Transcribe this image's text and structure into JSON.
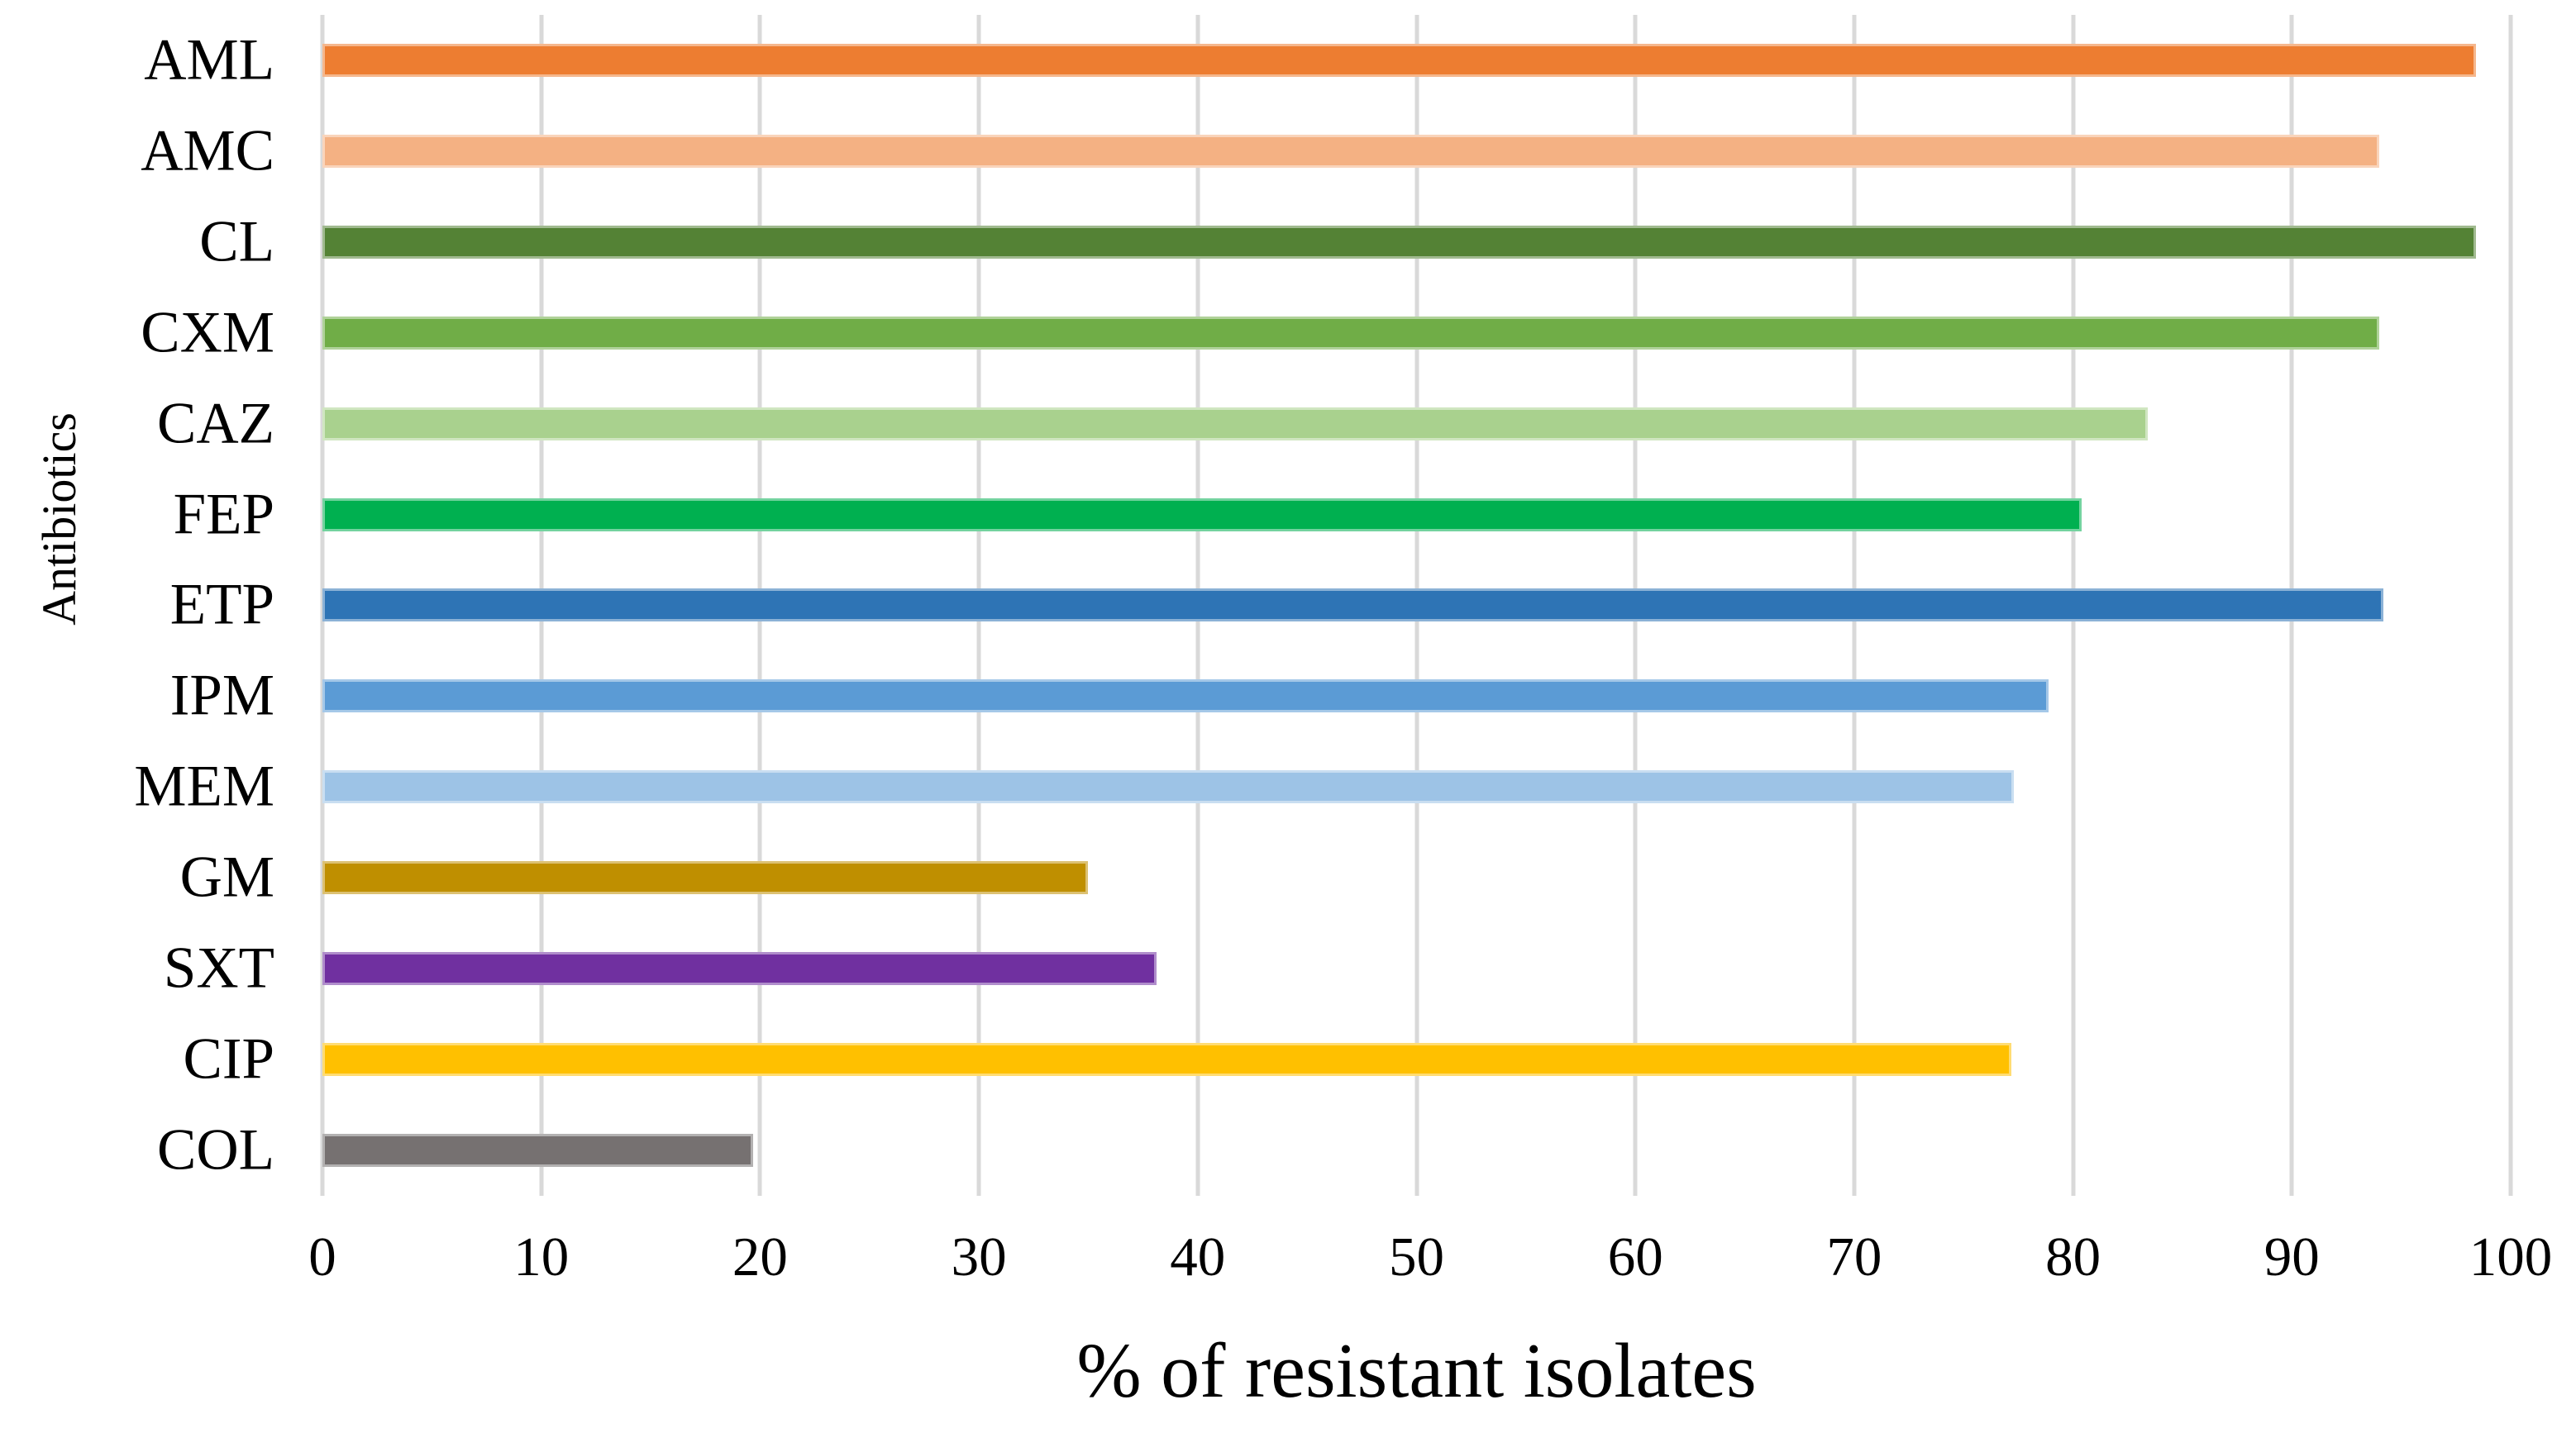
{
  "chart_data": {
    "type": "bar",
    "orientation": "horizontal",
    "title": "",
    "xlabel": "% of resistant isolates",
    "ylabel": "Antibiotics",
    "xlim": [
      0,
      100
    ],
    "x_ticks": [
      0,
      10,
      20,
      30,
      40,
      50,
      60,
      70,
      80,
      90,
      100
    ],
    "grid": "vertical-gridlines-on",
    "gridline_color": "#d9d9d9",
    "background_color": "#ffffff",
    "text_color": "#000000",
    "legend": "none",
    "categories": [
      "AML",
      "AMC",
      "CL",
      "CXM",
      "CAZ",
      "FEP",
      "ETP",
      "IPM",
      "MEM",
      "GM",
      "SXT",
      "CIP",
      "COL"
    ],
    "values": [
      98.4,
      94.0,
      98.4,
      94.0,
      83.4,
      80.4,
      94.2,
      78.9,
      77.3,
      35.0,
      38.1,
      77.2,
      19.7
    ],
    "bar_colors": [
      "#ED7D31",
      "#F4B183",
      "#548235",
      "#70AD47",
      "#A9D18E",
      "#00B050",
      "#2E74B5",
      "#5B9BD5",
      "#9DC3E6",
      "#BF8F00",
      "#7030A0",
      "#FFC000",
      "#767171"
    ]
  }
}
